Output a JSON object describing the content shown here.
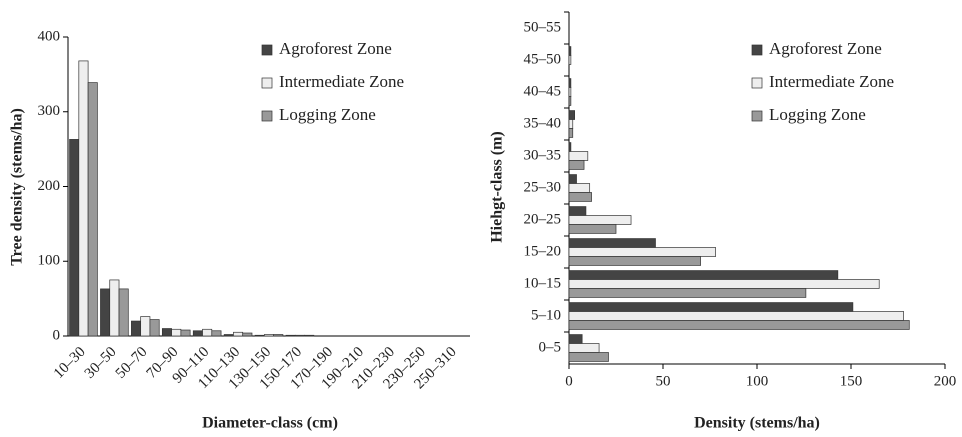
{
  "chart_data": [
    {
      "type": "bar",
      "orientation": "vertical",
      "x_label": "Diameter-class (cm)",
      "y_label": "Tree density (stems/ha)",
      "categories": [
        "10–30",
        "30–50",
        "50–70",
        "70–90",
        "90–110",
        "110–130",
        "130–150",
        "150–170",
        "170–190",
        "190–210",
        "210–230",
        "230–250",
        "250–310"
      ],
      "series": [
        {
          "name": "Agroforest Zone",
          "color": "#444444",
          "values": [
            263,
            63,
            20,
            10,
            7,
            2,
            1,
            1,
            0,
            0,
            0,
            0,
            0
          ]
        },
        {
          "name": "Intermediate Zone",
          "color": "#eeeeee",
          "values": [
            368,
            75,
            26,
            9,
            9,
            5,
            2,
            1,
            0,
            0,
            0,
            0,
            0
          ]
        },
        {
          "name": "Logging Zone",
          "color": "#999999",
          "values": [
            339,
            63,
            22,
            8,
            7,
            4,
            2,
            1,
            0,
            0,
            0,
            0,
            0
          ]
        }
      ],
      "ylim": [
        0,
        400
      ],
      "yticks": [
        0,
        100,
        200,
        300,
        400
      ],
      "legend": "top right"
    },
    {
      "type": "bar",
      "orientation": "horizontal",
      "x_label": "Density (stems/ha)",
      "y_label": "Hiehgt-class (m)",
      "categories": [
        "0–5",
        "5–10",
        "10–15",
        "15–20",
        "20–25",
        "25–30",
        "30–35",
        "35–40",
        "40–45",
        "45–50",
        "50–55"
      ],
      "series": [
        {
          "name": "Agroforest Zone",
          "color": "#444444",
          "values": [
            7,
            151,
            143,
            46,
            9,
            4,
            1,
            3,
            1,
            1,
            0
          ]
        },
        {
          "name": "Intermediate Zone",
          "color": "#eeeeee",
          "values": [
            16,
            178,
            165,
            78,
            33,
            11,
            10,
            2,
            1,
            1,
            0
          ]
        },
        {
          "name": "Logging Zone",
          "color": "#999999",
          "values": [
            21,
            181,
            126,
            70,
            25,
            12,
            8,
            2,
            1,
            0,
            0
          ]
        }
      ],
      "xlim": [
        0,
        200
      ],
      "xticks": [
        0,
        50,
        100,
        150,
        200
      ],
      "legend": "top right"
    }
  ]
}
